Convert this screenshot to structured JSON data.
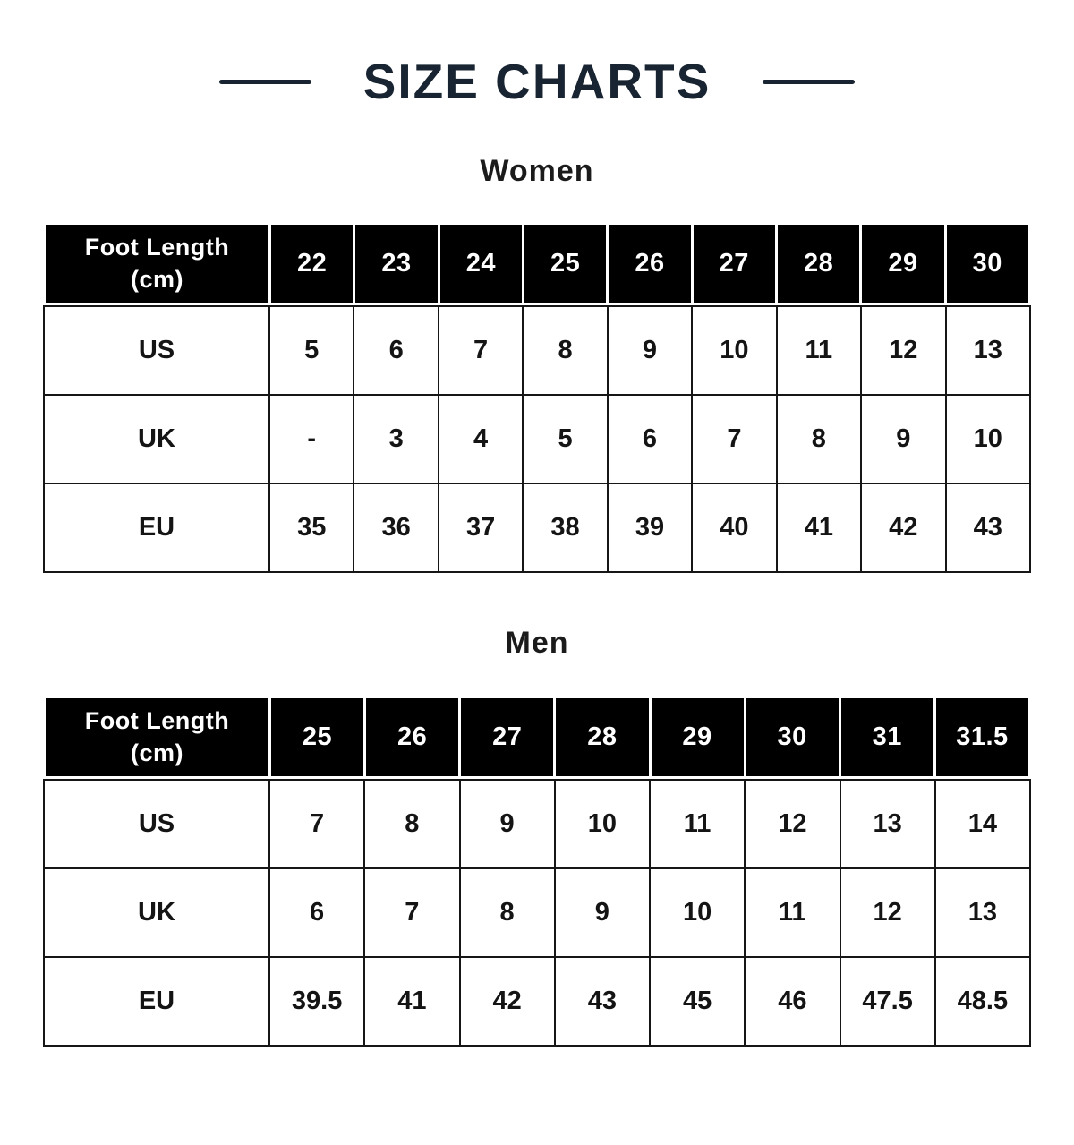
{
  "title": "SIZE CHARTS",
  "colors": {
    "accent_navy": "#182431",
    "header_bg": "#000000",
    "header_text": "#ffffff",
    "body_text": "#141414",
    "grid_border": "#161616",
    "background": "#ffffff"
  },
  "chart_data": [
    {
      "type": "table",
      "title": "Women",
      "corner_header": {
        "line1": "Foot Length",
        "line2": "(cm)"
      },
      "columns": [
        "22",
        "23",
        "24",
        "25",
        "26",
        "27",
        "28",
        "29",
        "30"
      ],
      "rows": [
        {
          "label": "US",
          "values": [
            "5",
            "6",
            "7",
            "8",
            "9",
            "10",
            "11",
            "12",
            "13"
          ]
        },
        {
          "label": "UK",
          "values": [
            "-",
            "3",
            "4",
            "5",
            "6",
            "7",
            "8",
            "9",
            "10"
          ]
        },
        {
          "label": "EU",
          "values": [
            "35",
            "36",
            "37",
            "38",
            "39",
            "40",
            "41",
            "42",
            "43"
          ]
        }
      ]
    },
    {
      "type": "table",
      "title": "Men",
      "corner_header": {
        "line1": "Foot Length",
        "line2": "(cm)"
      },
      "columns": [
        "25",
        "26",
        "27",
        "28",
        "29",
        "30",
        "31",
        "31.5"
      ],
      "rows": [
        {
          "label": "US",
          "values": [
            "7",
            "8",
            "9",
            "10",
            "11",
            "12",
            "13",
            "14"
          ]
        },
        {
          "label": "UK",
          "values": [
            "6",
            "7",
            "8",
            "9",
            "10",
            "11",
            "12",
            "13"
          ]
        },
        {
          "label": "EU",
          "values": [
            "39.5",
            "41",
            "42",
            "43",
            "45",
            "46",
            "47.5",
            "48.5"
          ]
        }
      ]
    }
  ]
}
